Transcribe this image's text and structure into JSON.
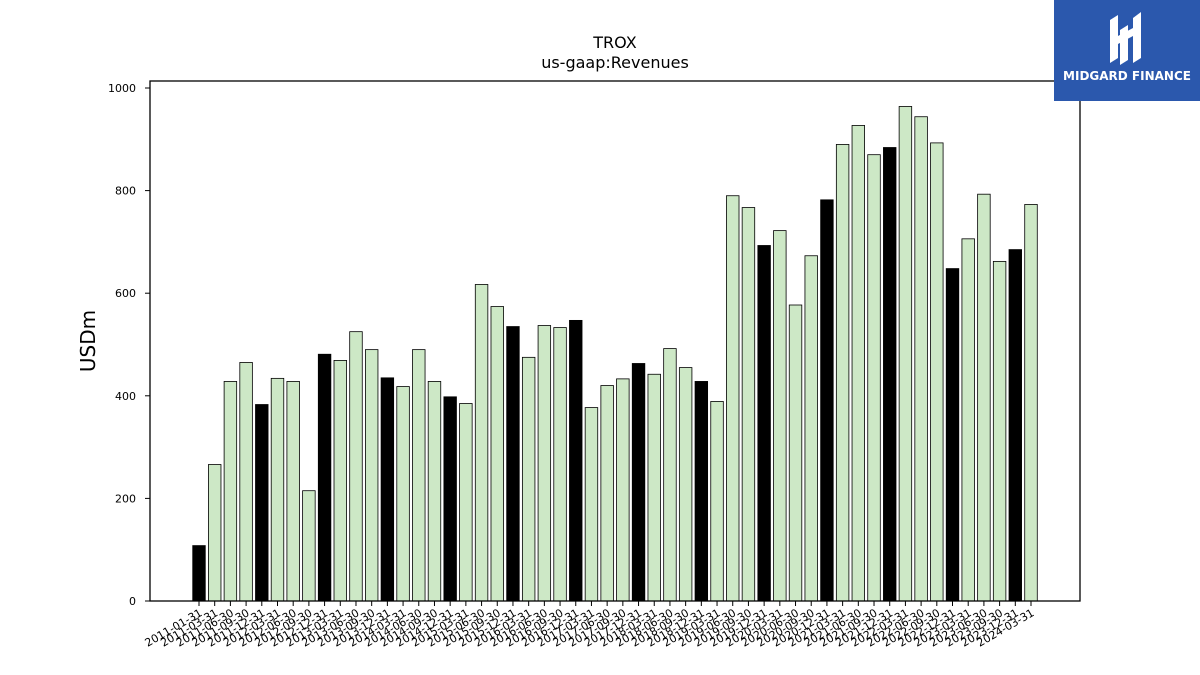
{
  "logo": {
    "text": "MIDGARD FINANCE",
    "bg_color": "#2b58ad"
  },
  "colors": {
    "highlight": "#000000",
    "normal": "#cde8c6",
    "edge": "#000000"
  },
  "chart_data": {
    "type": "bar",
    "title": "TROX",
    "subtitle": "us-gaap:Revenues",
    "ylabel": "USDm",
    "xlabel": "",
    "ylim": [
      0,
      1020
    ],
    "yticks": [
      0,
      200,
      400,
      600,
      800,
      1000
    ],
    "categories": [
      "2011-01-31",
      "2011-03-31",
      "2011-06-30",
      "2011-09-30",
      "2011-12-31",
      "2012-03-31",
      "2012-06-30",
      "2012-09-30",
      "2012-12-31",
      "2013-03-31",
      "2013-06-30",
      "2013-09-30",
      "2013-12-31",
      "2014-03-31",
      "2014-06-30",
      "2014-09-30",
      "2014-12-31",
      "2015-03-31",
      "2015-06-30",
      "2015-09-30",
      "2015-12-31",
      "2016-03-31",
      "2016-06-30",
      "2016-09-30",
      "2016-12-31",
      "2017-03-31",
      "2017-06-30",
      "2017-09-30",
      "2017-12-31",
      "2018-03-31",
      "2018-06-30",
      "2018-09-30",
      "2018-12-31",
      "2019-03-31",
      "2019-06-30",
      "2019-09-30",
      "2019-12-31",
      "2020-03-31",
      "2020-06-30",
      "2020-09-30",
      "2020-12-31",
      "2021-03-31",
      "2021-06-30",
      "2021-09-30",
      "2021-12-31",
      "2022-03-31",
      "2022-06-30",
      "2022-09-30",
      "2022-12-31",
      "2023-03-31",
      "2023-06-30",
      "2023-09-30",
      "2023-12-31",
      "2024-03-31"
    ],
    "values": [
      108,
      266,
      428,
      465,
      383,
      434,
      428,
      215,
      481,
      469,
      525,
      490,
      435,
      418,
      490,
      428,
      398,
      385,
      617,
      574,
      535,
      475,
      537,
      533,
      547,
      377,
      420,
      433,
      463,
      442,
      492,
      455,
      428,
      389,
      790,
      767,
      693,
      722,
      577,
      673,
      782,
      890,
      927,
      870,
      884,
      964,
      944,
      893,
      648,
      706,
      793,
      662,
      685,
      773
    ],
    "highlight": [
      true,
      false,
      false,
      false,
      true,
      false,
      false,
      false,
      true,
      false,
      false,
      false,
      true,
      false,
      false,
      false,
      true,
      false,
      false,
      false,
      true,
      false,
      false,
      false,
      true,
      false,
      false,
      false,
      true,
      false,
      false,
      false,
      true,
      false,
      false,
      false,
      true,
      false,
      false,
      false,
      true,
      false,
      false,
      false,
      true,
      false,
      false,
      false,
      true,
      false,
      false,
      false,
      true,
      false
    ]
  }
}
